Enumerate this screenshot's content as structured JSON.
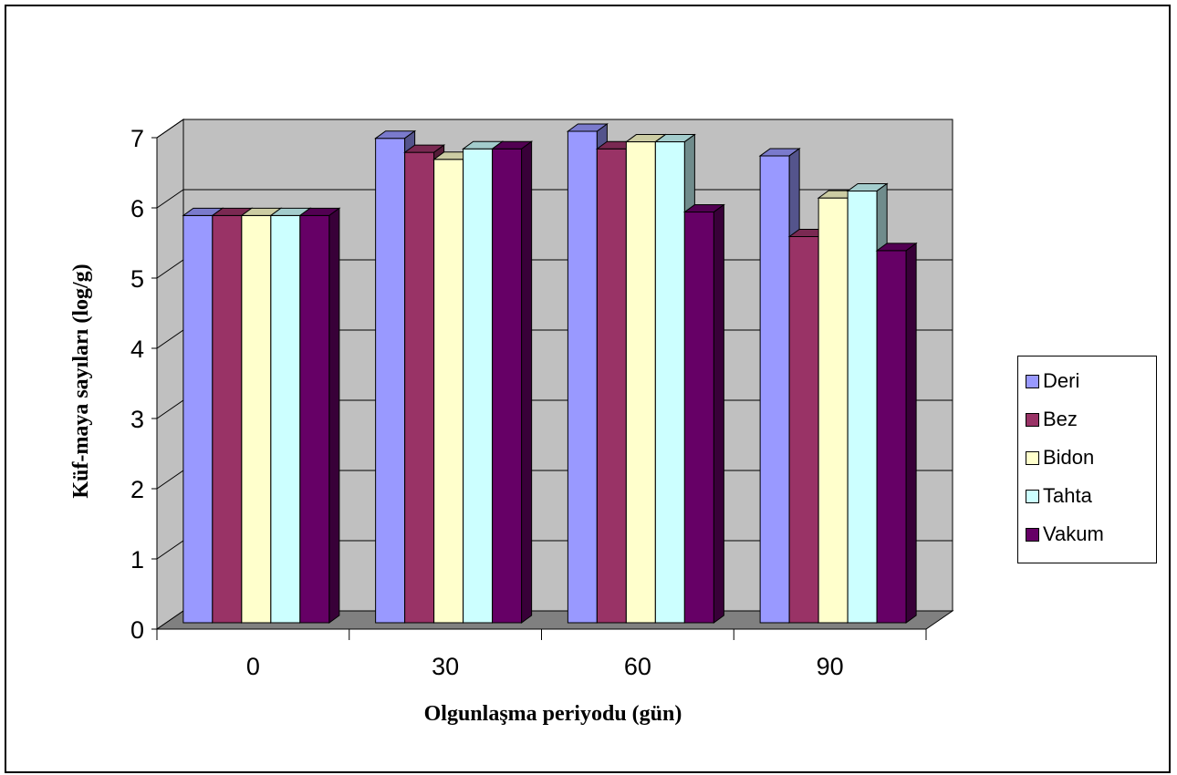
{
  "chart_data": {
    "type": "bar",
    "categories": [
      "0",
      "30",
      "60",
      "90"
    ],
    "series": [
      {
        "name": "Deri",
        "color": "#9999ff",
        "values": [
          5.8,
          6.9,
          7.0,
          6.65
        ]
      },
      {
        "name": "Bez",
        "color": "#993366",
        "values": [
          5.8,
          6.7,
          6.75,
          5.5
        ]
      },
      {
        "name": "Bidon",
        "color": "#ffffcc",
        "values": [
          5.8,
          6.6,
          6.85,
          6.05
        ]
      },
      {
        "name": "Tahta",
        "color": "#ccffff",
        "values": [
          5.8,
          6.75,
          6.85,
          6.15
        ]
      },
      {
        "name": "Vakum",
        "color": "#660066",
        "values": [
          5.8,
          6.75,
          5.85,
          5.3
        ]
      }
    ],
    "yticks": [
      "0",
      "1",
      "2",
      "3",
      "4",
      "5",
      "6",
      "7"
    ],
    "ylim": [
      0,
      7
    ],
    "xlabel": "Olgunlaşma periyodu (gün)",
    "ylabel": "Küf-maya sayıları (log/g)",
    "legend_position": "right",
    "grid": true,
    "style": "3d-clustered-column",
    "wall_color": "#c0c0c0",
    "floor_color": "#808080"
  }
}
